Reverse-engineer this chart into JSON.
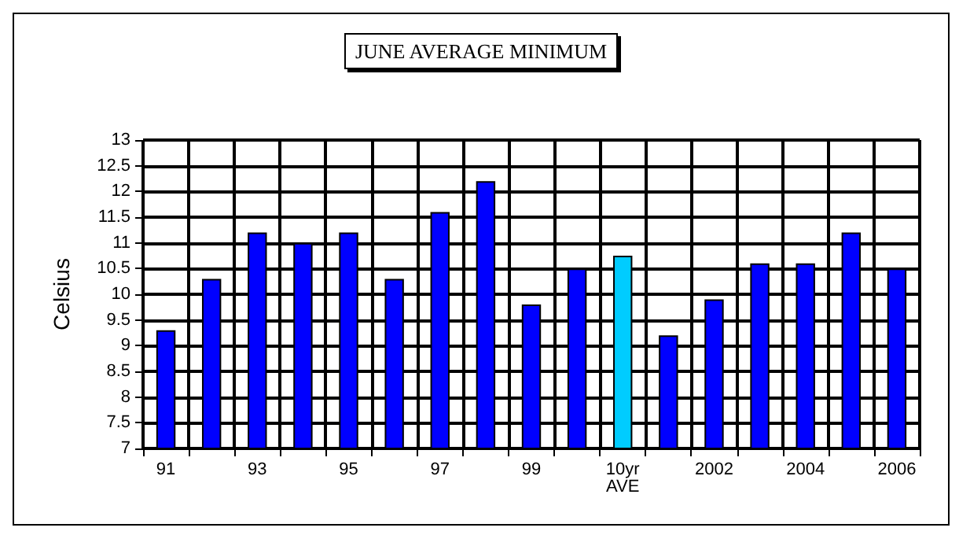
{
  "chart_data": {
    "type": "bar",
    "title": "JUNE AVERAGE MINIMUM",
    "ylabel": "Celsius",
    "categories": [
      "91",
      null,
      "93",
      null,
      "95",
      null,
      "97",
      null,
      "99",
      null,
      "10yr\nAVE",
      null,
      "2002",
      null,
      "2004",
      null,
      "2006"
    ],
    "values": [
      9.3,
      10.3,
      11.2,
      11.0,
      11.2,
      10.3,
      11.6,
      12.2,
      9.8,
      10.5,
      10.75,
      9.2,
      9.9,
      10.6,
      10.6,
      11.2,
      10.5
    ],
    "colors": [
      "#0000ff",
      "#0000ff",
      "#0000ff",
      "#0000ff",
      "#0000ff",
      "#0000ff",
      "#0000ff",
      "#0000ff",
      "#0000ff",
      "#0000ff",
      "#00ccff",
      "#0000ff",
      "#0000ff",
      "#0000ff",
      "#0000ff",
      "#0000ff",
      "#0000ff"
    ],
    "ylim": [
      7,
      13
    ],
    "yticks": [
      7,
      7.5,
      8,
      8.5,
      9,
      9.5,
      10,
      10.5,
      11,
      11.5,
      12,
      12.5,
      13
    ],
    "grid": true
  }
}
